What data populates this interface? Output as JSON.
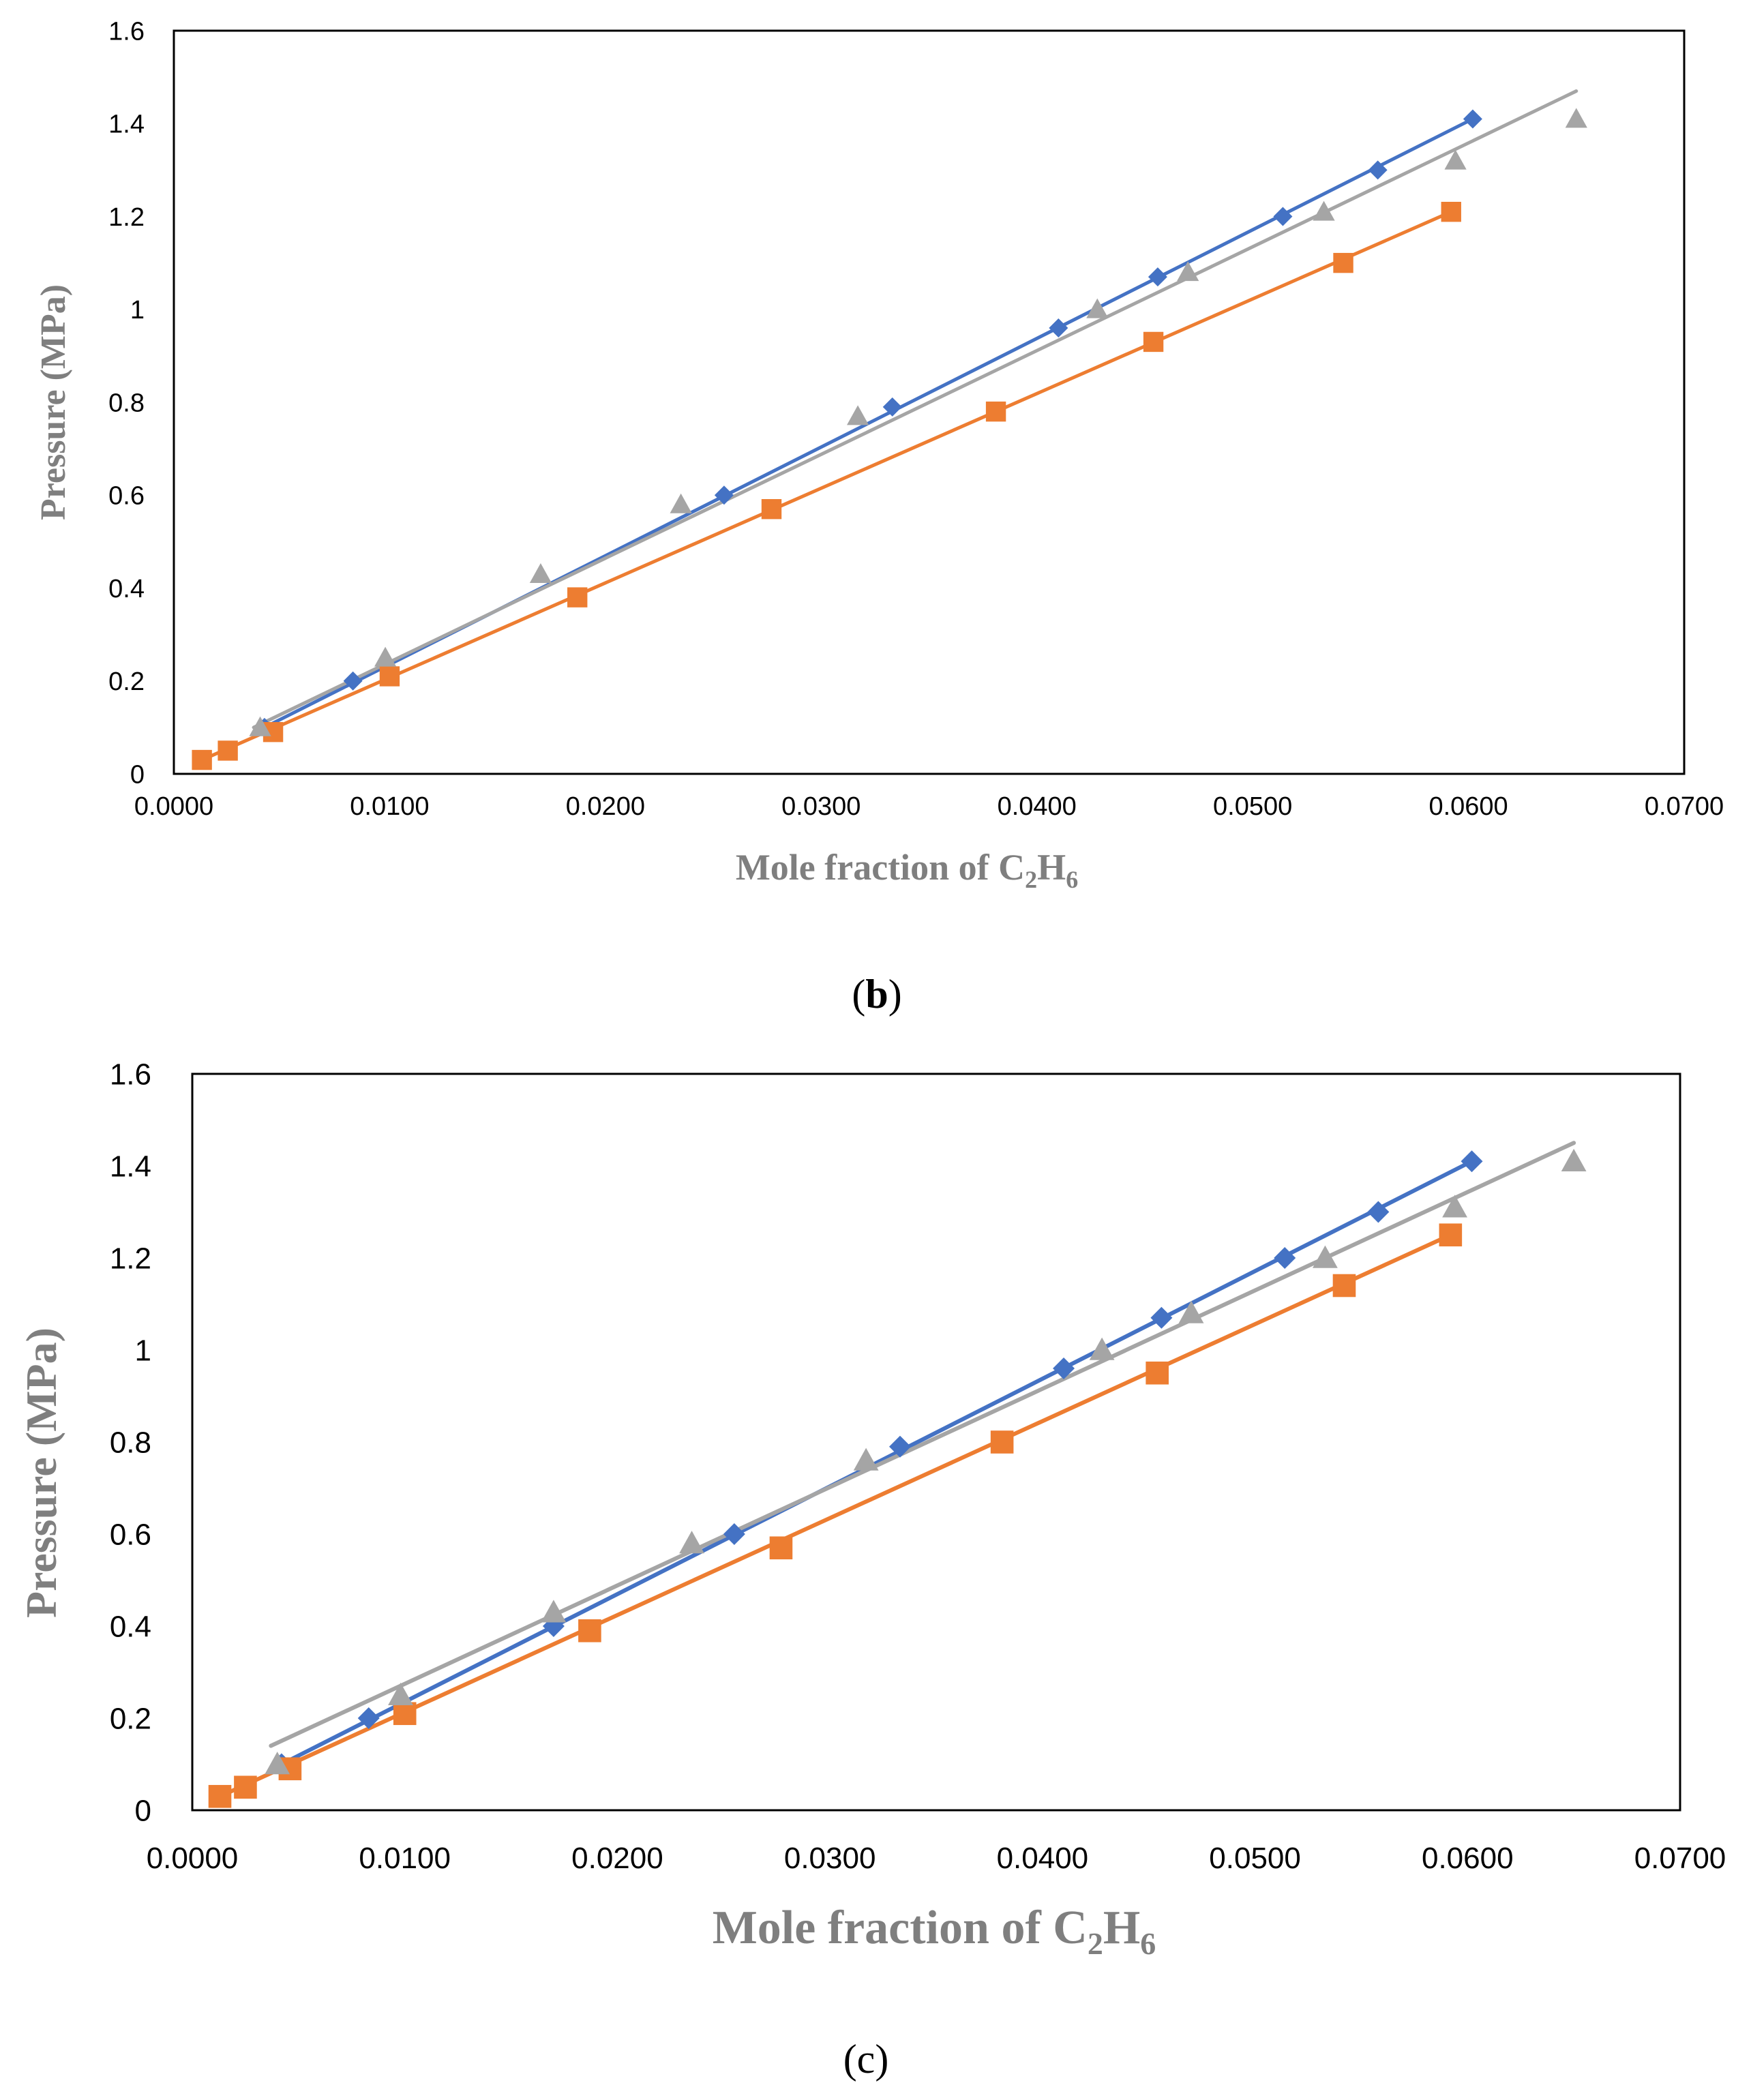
{
  "colors": {
    "blue": "#4472c4",
    "orange": "#ed7d31",
    "gray": "#a5a5a5",
    "axis_title": "#7f7f7f"
  },
  "chart_data": [
    {
      "type": "scatter",
      "panel_label": "b",
      "xlabel_main": "Mole fraction of C",
      "xlabel_sub1": "2",
      "xlabel_mid": "H",
      "xlabel_sub2": "6",
      "ylabel": "Pressure (MPa)",
      "xlim": [
        0,
        0.07
      ],
      "ylim": [
        0,
        1.6
      ],
      "xticks": [
        "0.0000",
        "0.0100",
        "0.0200",
        "0.0300",
        "0.0400",
        "0.0500",
        "0.0600",
        "0.0700"
      ],
      "yticks": [
        "0",
        "0.2",
        "0.4",
        "0.6",
        "0.8",
        "1",
        "1.2",
        "1.4",
        "1.6"
      ],
      "series": [
        {
          "name": "blue-diamond",
          "marker": "diamond",
          "color": "#4472c4",
          "x": [
            0.0042,
            0.0083,
            0.0255,
            0.0333,
            0.041,
            0.0456,
            0.0514,
            0.0558,
            0.0602
          ],
          "y": [
            0.1,
            0.2,
            0.6,
            0.79,
            0.96,
            1.07,
            1.2,
            1.3,
            1.41
          ],
          "fit": [
            [
              0.0042,
              0.1
            ],
            [
              0.0602,
              1.41
            ]
          ]
        },
        {
          "name": "orange-square",
          "marker": "square",
          "color": "#ed7d31",
          "x": [
            0.0013,
            0.0025,
            0.0046,
            0.01,
            0.0187,
            0.0277,
            0.0381,
            0.0454,
            0.0542,
            0.0592
          ],
          "y": [
            0.03,
            0.05,
            0.09,
            0.21,
            0.38,
            0.57,
            0.78,
            0.93,
            1.1,
            1.21
          ],
          "fit": [
            [
              0.0013,
              0.03
            ],
            [
              0.0592,
              1.21
            ]
          ]
        },
        {
          "name": "gray-triangle",
          "marker": "triangle",
          "color": "#a5a5a5",
          "x": [
            0.004,
            0.0098,
            0.017,
            0.0235,
            0.0317,
            0.0428,
            0.047,
            0.0533,
            0.0594,
            0.065
          ],
          "y": [
            0.1,
            0.25,
            0.43,
            0.58,
            0.77,
            1.0,
            1.08,
            1.21,
            1.32,
            1.41
          ],
          "fit": [
            [
              0.0037,
              0.1
            ],
            [
              0.065,
              1.47
            ]
          ]
        }
      ]
    },
    {
      "type": "scatter",
      "panel_label": "c",
      "xlabel_main": "Mole fraction of C",
      "xlabel_sub1": "2",
      "xlabel_mid": "H",
      "xlabel_sub2": "6",
      "ylabel": "Pressure (MPa)",
      "xlim": [
        0,
        0.07
      ],
      "ylim": [
        0,
        1.6
      ],
      "xticks": [
        "0.0000",
        "0.0100",
        "0.0200",
        "0.0300",
        "0.0400",
        "0.0500",
        "0.0600",
        "0.0700"
      ],
      "yticks": [
        "0",
        "0.2",
        "0.4",
        "0.6",
        "0.8",
        "1",
        "1.2",
        "1.4",
        "1.6"
      ],
      "series": [
        {
          "name": "blue-diamond",
          "marker": "diamond",
          "color": "#4472c4",
          "x": [
            0.0042,
            0.0083,
            0.017,
            0.0255,
            0.0333,
            0.041,
            0.0456,
            0.0514,
            0.0558,
            0.0602
          ],
          "y": [
            0.1,
            0.2,
            0.4,
            0.6,
            0.79,
            0.96,
            1.07,
            1.2,
            1.3,
            1.41
          ],
          "fit": [
            [
              0.0042,
              0.1
            ],
            [
              0.0602,
              1.41
            ]
          ]
        },
        {
          "name": "orange-square",
          "marker": "square",
          "color": "#ed7d31",
          "x": [
            0.0013,
            0.0025,
            0.0046,
            0.01,
            0.0187,
            0.0277,
            0.0381,
            0.0454,
            0.0542,
            0.0592
          ],
          "y": [
            0.03,
            0.05,
            0.09,
            0.21,
            0.39,
            0.57,
            0.8,
            0.95,
            1.14,
            1.25
          ],
          "fit": [
            [
              0.0013,
              0.03
            ],
            [
              0.0592,
              1.25
            ]
          ]
        },
        {
          "name": "gray-triangle",
          "marker": "triangle",
          "color": "#a5a5a5",
          "x": [
            0.004,
            0.0098,
            0.017,
            0.0235,
            0.0317,
            0.0428,
            0.047,
            0.0533,
            0.0594,
            0.065
          ],
          "y": [
            0.1,
            0.25,
            0.43,
            0.58,
            0.76,
            1.0,
            1.08,
            1.2,
            1.31,
            1.41
          ],
          "fit": [
            [
              0.0037,
              0.14
            ],
            [
              0.065,
              1.45
            ]
          ]
        }
      ]
    }
  ]
}
